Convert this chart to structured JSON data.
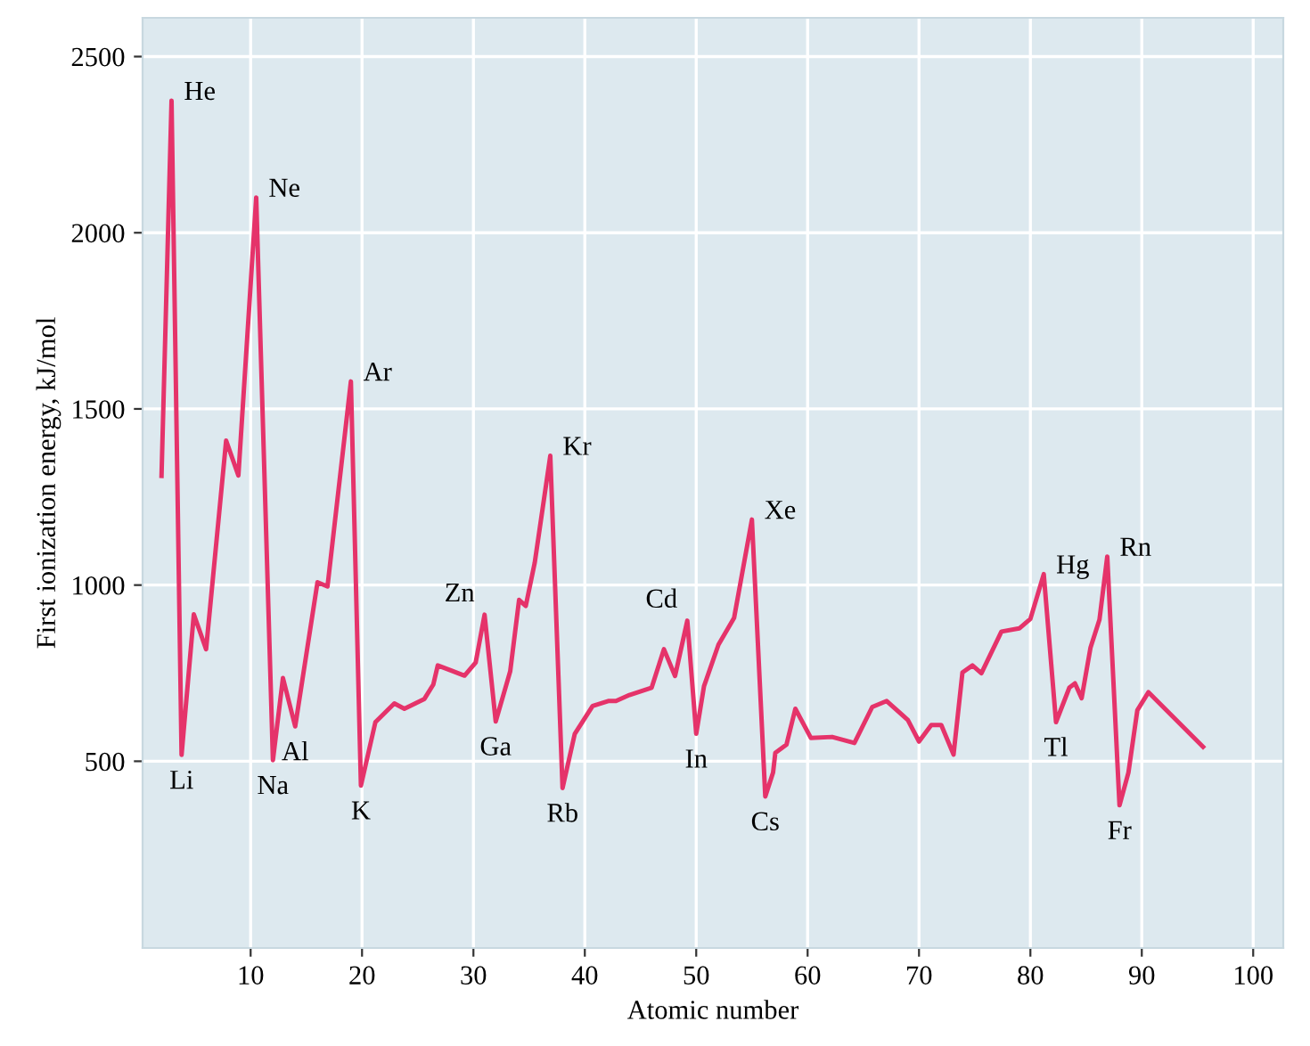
{
  "chart_data": {
    "type": "line",
    "xlabel": "Atomic number",
    "ylabel": "First ionization energy, kJ/mol",
    "x": [
      2.0,
      2.9,
      3.8,
      4.9,
      6.0,
      7.8,
      8.9,
      10.5,
      12.0,
      12.9,
      14.0,
      16.0,
      16.9,
      19.0,
      19.9,
      21.2,
      22.9,
      23.8,
      25.6,
      26.4,
      26.8,
      29.2,
      30.2,
      31.0,
      32.0,
      33.3,
      34.1,
      34.7,
      35.5,
      36.9,
      38.0,
      39.1,
      40.7,
      42.1,
      42.8,
      44.0,
      46.0,
      47.1,
      48.1,
      49.2,
      50.0,
      50.7,
      52.0,
      53.4,
      55.0,
      56.2,
      56.9,
      57.1,
      58.1,
      58.9,
      60.3,
      62.2,
      64.2,
      65.8,
      67.1,
      69.0,
      70.0,
      71.1,
      72.0,
      73.1,
      73.9,
      74.8,
      75.6,
      77.4,
      79.0,
      80.0,
      81.2,
      82.3,
      83.5,
      84.0,
      84.6,
      85.4,
      86.2,
      86.9,
      88.0,
      88.8,
      89.6,
      90.6,
      95.5
    ],
    "series": [
      {
        "color": "#e5336a",
        "values": [
          1310,
          2375,
          518,
          917,
          818,
          1410,
          1311,
          2100,
          503,
          736,
          599,
          1008,
          996,
          1578,
          431,
          611,
          664,
          649,
          677,
          718,
          772,
          743,
          780,
          916,
          613,
          755,
          958,
          941,
          1063,
          1367,
          424,
          578,
          657,
          671,
          671,
          688,
          709,
          818,
          742,
          899,
          578,
          713,
          831,
          907,
          1186,
          400,
          468,
          524,
          547,
          649,
          566,
          569,
          552,
          654,
          671,
          617,
          556,
          603,
          603,
          519,
          752,
          772,
          750,
          868,
          877,
          904,
          1031,
          611,
          709,
          721,
          679,
          823,
          902,
          1081,
          375,
          468,
          645,
          696,
          541
        ]
      }
    ],
    "xlim": [
      0.3,
      102.7
    ],
    "ylim": [
      -30,
      2610
    ],
    "xticks": [
      10,
      20,
      30,
      40,
      50,
      60,
      70,
      80,
      90,
      100
    ],
    "yticks": [
      500,
      1000,
      1500,
      2000,
      2500
    ],
    "grid": true,
    "legend": false,
    "marker": "none",
    "line_style": "solid",
    "annotations": [
      {
        "text": "He",
        "x": 2.9,
        "y": 2375
      },
      {
        "text": "Li",
        "x": 3.8,
        "y": 518
      },
      {
        "text": "Ne",
        "x": 10.5,
        "y": 2100
      },
      {
        "text": "Na",
        "x": 12.0,
        "y": 503
      },
      {
        "text": "Al",
        "x": 14.0,
        "y": 599
      },
      {
        "text": "Ar",
        "x": 19.0,
        "y": 1578
      },
      {
        "text": "K",
        "x": 19.9,
        "y": 431
      },
      {
        "text": "Zn",
        "x": 31.0,
        "y": 916
      },
      {
        "text": "Ga",
        "x": 32.0,
        "y": 613
      },
      {
        "text": "Kr",
        "x": 36.9,
        "y": 1367
      },
      {
        "text": "Rb",
        "x": 38.0,
        "y": 424
      },
      {
        "text": "Cd",
        "x": 49.2,
        "y": 899
      },
      {
        "text": "In",
        "x": 50.0,
        "y": 578
      },
      {
        "text": "Xe",
        "x": 55.0,
        "y": 1186
      },
      {
        "text": "Cs",
        "x": 56.2,
        "y": 400
      },
      {
        "text": "Hg",
        "x": 81.2,
        "y": 1031
      },
      {
        "text": "Tl",
        "x": 82.3,
        "y": 611
      },
      {
        "text": "Rn",
        "x": 86.9,
        "y": 1081
      },
      {
        "text": "Fr",
        "x": 88.0,
        "y": 375
      }
    ]
  }
}
